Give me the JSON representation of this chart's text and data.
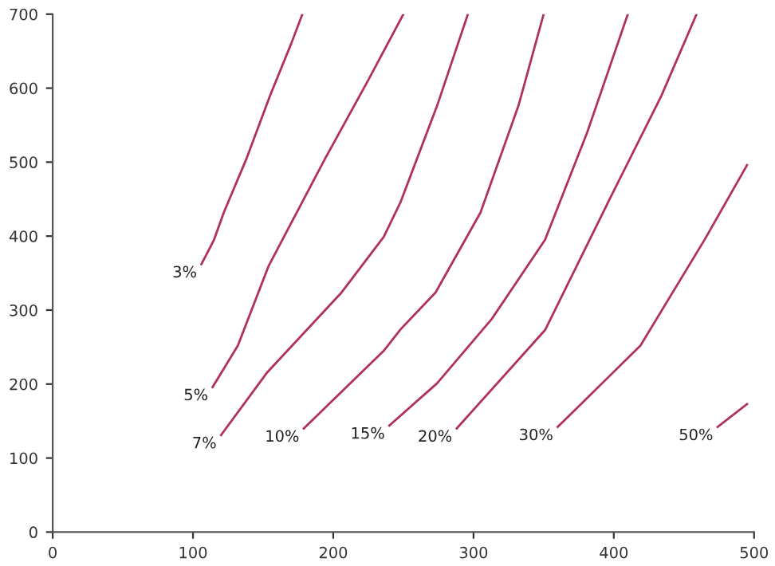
{
  "chart_data": {
    "type": "line",
    "xlim": [
      0,
      500
    ],
    "ylim": [
      0,
      700
    ],
    "xticks": [
      0,
      100,
      200,
      300,
      400,
      500
    ],
    "yticks": [
      0,
      100,
      200,
      300,
      400,
      500,
      600,
      700
    ],
    "grid": false,
    "legend": false,
    "marker": "none",
    "line_style": "solid",
    "series": [
      {
        "name": "3%",
        "color": "#b03060",
        "x": [
          106,
          115,
          122,
          138,
          155,
          170,
          178
        ],
        "values": [
          362,
          395,
          432,
          504,
          590,
          660,
          700
        ]
      },
      {
        "name": "5%",
        "color": "#b03060",
        "x": [
          114,
          132,
          154,
          194,
          225,
          250
        ],
        "values": [
          196,
          252,
          360,
          504,
          611,
          700
        ]
      },
      {
        "name": "7%",
        "color": "#b03060",
        "x": [
          120,
          153,
          206,
          236,
          248,
          274,
          296
        ],
        "values": [
          131,
          216,
          324,
          399,
          446,
          576,
          700
        ]
      },
      {
        "name": "10%",
        "color": "#b03060",
        "x": [
          179,
          236,
          248,
          273,
          305,
          332,
          350
        ],
        "values": [
          140,
          245,
          274,
          324,
          432,
          576,
          700
        ]
      },
      {
        "name": "15%",
        "color": "#b03060",
        "x": [
          240,
          274,
          313,
          351,
          381,
          410
        ],
        "values": [
          144,
          201,
          288,
          395,
          540,
          700
        ]
      },
      {
        "name": "20%",
        "color": "#b03060",
        "x": [
          288,
          351,
          396,
          434,
          459
        ],
        "values": [
          140,
          273,
          446,
          590,
          700
        ]
      },
      {
        "name": "30%",
        "color": "#b03060",
        "x": [
          360,
          419,
          465,
          495
        ],
        "values": [
          142,
          252,
          396,
          496
        ]
      },
      {
        "name": "50%",
        "color": "#b03060",
        "x": [
          474,
          495
        ],
        "values": [
          142,
          173
        ]
      }
    ]
  }
}
